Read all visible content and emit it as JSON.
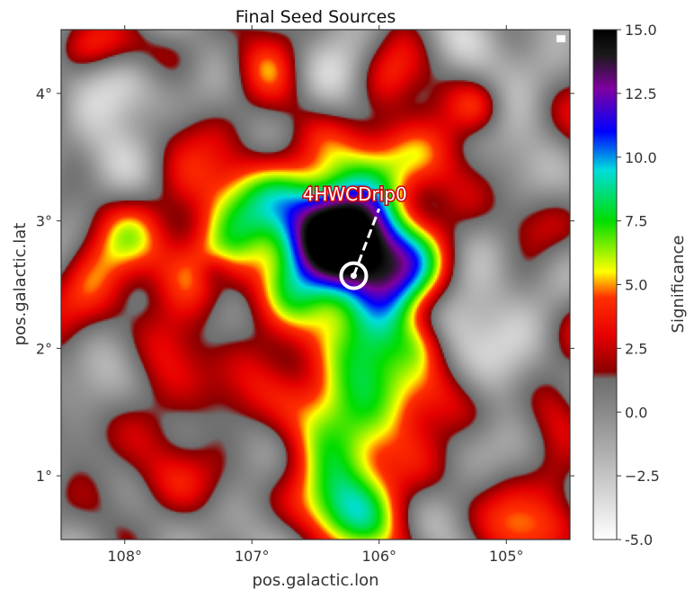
{
  "chart_data": {
    "type": "heatmap",
    "title": "Final Seed Sources",
    "xlabel": "pos.galactic.lon",
    "ylabel": "pos.galactic.lat",
    "xlim": [
      108.5,
      104.5
    ],
    "ylim": [
      0.5,
      4.5
    ],
    "x_ticks": [
      {
        "value": 108,
        "label": "108°"
      },
      {
        "value": 107,
        "label": "107°"
      },
      {
        "value": 106,
        "label": "106°"
      },
      {
        "value": 105,
        "label": "105°"
      }
    ],
    "y_ticks": [
      {
        "value": 1,
        "label": "1°"
      },
      {
        "value": 2,
        "label": "2°"
      },
      {
        "value": 3,
        "label": "3°"
      },
      {
        "value": 4,
        "label": "4°"
      }
    ],
    "colorbar": {
      "label": "Significance",
      "range": [
        -5.0,
        15.0
      ],
      "ticks": [
        "-5.0",
        "−2.5",
        "0.0",
        "2.5",
        "5.0",
        "7.5",
        "10.0",
        "12.5",
        "15.0"
      ],
      "tick_values": [
        -5,
        -2.5,
        0,
        2.5,
        5,
        7.5,
        10,
        12.5,
        15
      ],
      "stops": [
        {
          "v": -5.0,
          "color": "#ffffff"
        },
        {
          "v": 0.0,
          "color": "#8a8a8a"
        },
        {
          "v": 1.3,
          "color": "#6e6e6e"
        },
        {
          "v": 1.6,
          "color": "#8b0000"
        },
        {
          "v": 3.0,
          "color": "#e60000"
        },
        {
          "v": 4.5,
          "color": "#ff3000"
        },
        {
          "v": 5.5,
          "color": "#ffff00"
        },
        {
          "v": 7.5,
          "color": "#00dd00"
        },
        {
          "v": 9.5,
          "color": "#00dddd"
        },
        {
          "v": 11.0,
          "color": "#0000ff"
        },
        {
          "v": 12.7,
          "color": "#8000a0"
        },
        {
          "v": 14.0,
          "color": "#1a1a1a"
        },
        {
          "v": 15.0,
          "color": "#000000"
        }
      ]
    },
    "blobs": [
      {
        "l": 106.25,
        "b": 2.8,
        "sl": 0.45,
        "sb": 0.28,
        "amp": 14.5,
        "rot": -35
      },
      {
        "l": 106.55,
        "b": 2.85,
        "sl": 0.7,
        "sb": 0.55,
        "amp": 4.5,
        "rot": -20
      },
      {
        "l": 106.4,
        "b": 2.2,
        "sl": 0.4,
        "sb": 0.5,
        "amp": 2.5,
        "rot": 0
      },
      {
        "l": 106.4,
        "b": 1.5,
        "sl": 0.45,
        "sb": 0.45,
        "amp": 3.2,
        "rot": 0
      },
      {
        "l": 106.3,
        "b": 0.75,
        "sl": 0.3,
        "sb": 0.25,
        "amp": 5.5,
        "rot": 0
      },
      {
        "l": 106.0,
        "b": 0.9,
        "sl": 0.55,
        "sb": 0.4,
        "amp": 2.8,
        "rot": 0
      },
      {
        "l": 105.9,
        "b": 1.7,
        "sl": 0.3,
        "sb": 0.25,
        "amp": 3.0,
        "rot": 0
      },
      {
        "l": 105.9,
        "b": 3.5,
        "sl": 0.35,
        "sb": 0.25,
        "amp": 3.5,
        "rot": 0
      },
      {
        "l": 105.95,
        "b": 4.1,
        "sl": 0.2,
        "sb": 0.2,
        "amp": 3.0,
        "rot": 0
      },
      {
        "l": 106.9,
        "b": 4.25,
        "sl": 0.2,
        "sb": 0.2,
        "amp": 3.0,
        "rot": 0
      },
      {
        "l": 107.7,
        "b": 2.9,
        "sl": 0.35,
        "sb": 0.35,
        "amp": 3.0,
        "rot": 0
      },
      {
        "l": 108.25,
        "b": 2.5,
        "sl": 0.3,
        "sb": 0.3,
        "amp": 3.5,
        "rot": 0
      },
      {
        "l": 107.6,
        "b": 1.7,
        "sl": 0.3,
        "sb": 0.35,
        "amp": 2.8,
        "rot": 0
      },
      {
        "l": 107.7,
        "b": 0.95,
        "sl": 0.3,
        "sb": 0.2,
        "amp": 3.0,
        "rot": 0
      },
      {
        "l": 108.1,
        "b": 4.35,
        "sl": 0.3,
        "sb": 0.15,
        "amp": 3.0,
        "rot": 0
      },
      {
        "l": 107.55,
        "b": 3.75,
        "sl": 0.3,
        "sb": 0.2,
        "amp": 2.5,
        "rot": 0
      },
      {
        "l": 105.25,
        "b": 2.7,
        "sl": 0.25,
        "sb": 0.25,
        "amp": 2.5,
        "rot": 0
      },
      {
        "l": 104.9,
        "b": 3.0,
        "sl": 0.2,
        "sb": 0.2,
        "amp": 2.5,
        "rot": 0
      },
      {
        "l": 105.2,
        "b": 3.9,
        "sl": 0.15,
        "sb": 0.15,
        "amp": 3.0,
        "rot": 0
      },
      {
        "l": 105.25,
        "b": 1.5,
        "sl": 0.25,
        "sb": 0.2,
        "amp": 2.5,
        "rot": 0
      },
      {
        "l": 104.9,
        "b": 0.6,
        "sl": 0.3,
        "sb": 0.2,
        "amp": 3.0,
        "rot": 0
      },
      {
        "l": 104.6,
        "b": 1.0,
        "sl": 0.15,
        "sb": 0.2,
        "amp": 3.0,
        "rot": 0
      },
      {
        "l": 105.65,
        "b": 2.05,
        "sl": 0.15,
        "sb": 0.15,
        "amp": 3.0,
        "rot": 0
      },
      {
        "l": 108.4,
        "b": 1.3,
        "sl": 0.2,
        "sb": 0.2,
        "amp": 2.5,
        "rot": 0
      },
      {
        "l": 105.2,
        "b": 2.2,
        "sl": 0.3,
        "sb": 0.35,
        "amp": -4.0,
        "rot": 0
      },
      {
        "l": 107.95,
        "b": 3.9,
        "sl": 0.3,
        "sb": 0.3,
        "amp": -3.0,
        "rot": 0
      },
      {
        "l": 107.3,
        "b": 2.6,
        "sl": 0.1,
        "sb": 0.1,
        "amp": -2.0,
        "rot": 0
      },
      {
        "l": 107.4,
        "b": 1.15,
        "sl": 0.25,
        "sb": 0.25,
        "amp": -2.0,
        "rot": 0
      }
    ],
    "noise_seed": 7,
    "source": {
      "name": "4HWCDrip0",
      "l": 106.2,
      "b": 2.57,
      "label_l": 106.05,
      "label_b": 3.18
    }
  }
}
